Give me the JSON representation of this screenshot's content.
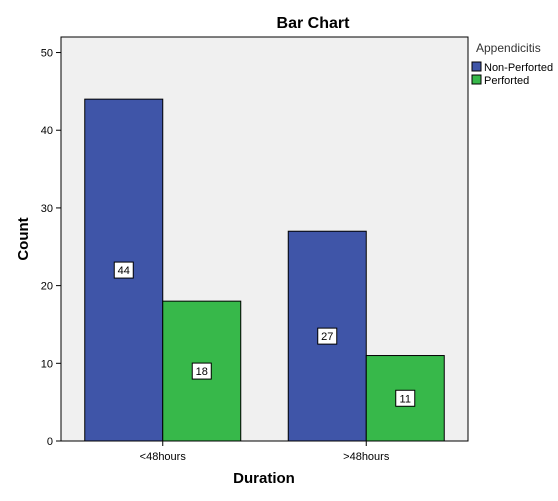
{
  "chart_data": {
    "type": "bar",
    "title": "Bar Chart",
    "xlabel": "Duration",
    "ylabel": "Count",
    "categories": [
      "<48hours",
      ">48hours"
    ],
    "series": [
      {
        "name": "Non-Perforted",
        "color": "#3f55a8",
        "values": [
          44,
          27
        ]
      },
      {
        "name": "Perforted",
        "color": "#37b84a",
        "values": [
          18,
          11
        ]
      }
    ],
    "ylim": [
      0,
      52
    ],
    "yticks": [
      0,
      10,
      20,
      30,
      40,
      50
    ],
    "legend": {
      "title": "Appendicitis",
      "placement": "top-right"
    },
    "plot_background": "#f0f0f0",
    "grid": false,
    "data_labels": true
  }
}
